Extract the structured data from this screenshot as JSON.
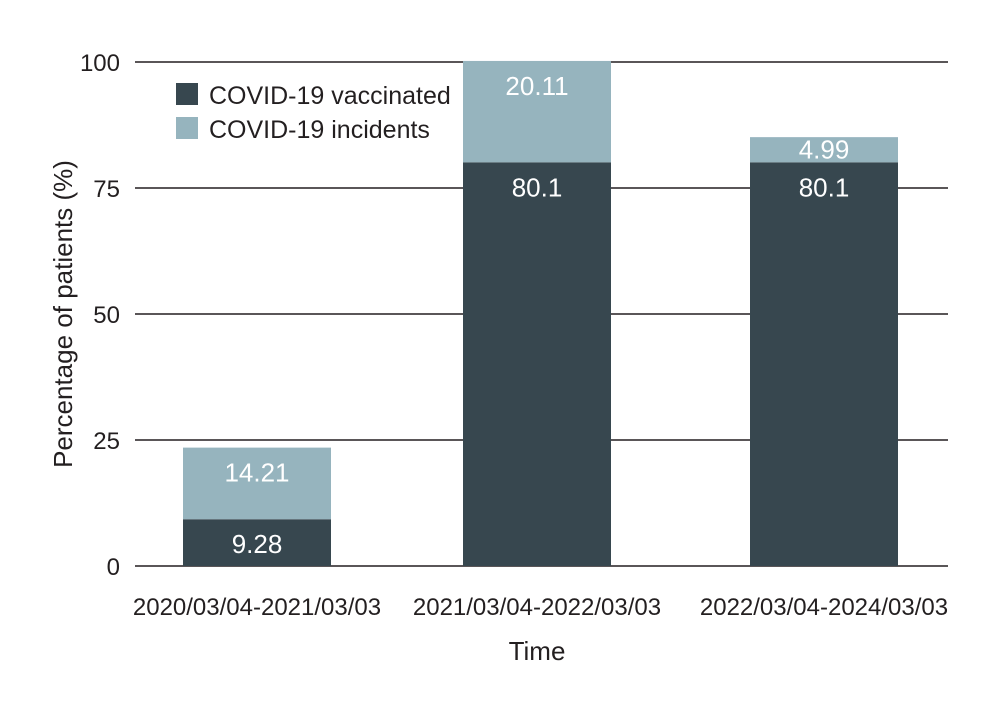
{
  "chart_data": {
    "type": "bar",
    "stacked": true,
    "categories": [
      "2020/03/04-2021/03/03",
      "2021/03/04-2022/03/03",
      "2022/03/04-2024/03/03"
    ],
    "series": [
      {
        "name": "COVID-19 vaccinated",
        "values": [
          9.28,
          80.1,
          80.1
        ],
        "labels": [
          "9.28",
          "80.1",
          "80.1"
        ],
        "color": "#37474f"
      },
      {
        "name": "COVID-19 incidents",
        "values": [
          14.21,
          20.11,
          4.99
        ],
        "labels": [
          "14.21",
          "20.11",
          "4.99"
        ],
        "color": "#96b4be"
      }
    ],
    "title": "",
    "xlabel": "Time",
    "ylabel": "Percentage of patients (%)",
    "ylim": [
      0,
      100
    ],
    "yticks": [
      0,
      25,
      50,
      75,
      100
    ],
    "ytick_labels": [
      "0",
      "25",
      "50",
      "75",
      "100"
    ],
    "grid": true,
    "legend_position": "top-left"
  }
}
